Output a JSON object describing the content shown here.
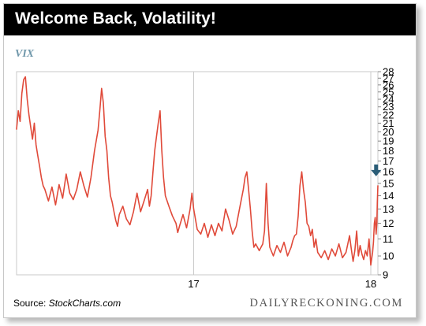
{
  "title": "Welcome Back, Volatility!",
  "series_label": "VIX",
  "source_prefix": "Source: ",
  "source_name": "StockCharts.com",
  "brand": "DAILYRECKONING.COM",
  "colors": {
    "line": "#e04a3a",
    "arrow": "#2b5d77",
    "series_label": "#6f97aa",
    "grid": "#c9c9c9",
    "title_bar": "#000000"
  },
  "chart_data": {
    "type": "line",
    "title": "Welcome Back, Volatility!",
    "ylabel": "VIX",
    "y_scale": "log",
    "ylim": [
      9,
      28
    ],
    "y_ticks": [
      9,
      10,
      11,
      12,
      13,
      14,
      15,
      16,
      17,
      18,
      19,
      20,
      21,
      22,
      23,
      24,
      25,
      26,
      27,
      28
    ],
    "x_range": [
      2016.0,
      2018.04
    ],
    "x_ticks": [
      {
        "value": 2017.0,
        "label": "17"
      },
      {
        "value": 2018.0,
        "label": "18"
      }
    ],
    "grid": "vertical",
    "annotation": {
      "type": "arrow-down",
      "x": 2018.03,
      "points_to": 15.2
    },
    "series": [
      {
        "values": [
          [
            2016.0,
            20.3
          ],
          [
            2016.01,
            22.5
          ],
          [
            2016.02,
            21.2
          ],
          [
            2016.03,
            24.8
          ],
          [
            2016.04,
            26.8
          ],
          [
            2016.05,
            27.2
          ],
          [
            2016.06,
            24.0
          ],
          [
            2016.07,
            22.0
          ],
          [
            2016.08,
            20.5
          ],
          [
            2016.09,
            19.2
          ],
          [
            2016.1,
            21.0
          ],
          [
            2016.11,
            18.6
          ],
          [
            2016.12,
            17.5
          ],
          [
            2016.13,
            16.5
          ],
          [
            2016.14,
            15.5
          ],
          [
            2016.15,
            14.8
          ],
          [
            2016.16,
            14.5
          ],
          [
            2016.18,
            13.6
          ],
          [
            2016.2,
            14.7
          ],
          [
            2016.22,
            13.3
          ],
          [
            2016.24,
            14.9
          ],
          [
            2016.26,
            13.8
          ],
          [
            2016.28,
            15.8
          ],
          [
            2016.3,
            14.2
          ],
          [
            2016.32,
            13.7
          ],
          [
            2016.34,
            14.5
          ],
          [
            2016.36,
            16.0
          ],
          [
            2016.38,
            14.8
          ],
          [
            2016.4,
            13.9
          ],
          [
            2016.42,
            15.5
          ],
          [
            2016.44,
            18.0
          ],
          [
            2016.46,
            20.2
          ],
          [
            2016.47,
            22.5
          ],
          [
            2016.48,
            25.5
          ],
          [
            2016.49,
            23.5
          ],
          [
            2016.5,
            19.5
          ],
          [
            2016.51,
            18.0
          ],
          [
            2016.52,
            15.5
          ],
          [
            2016.53,
            14.0
          ],
          [
            2016.54,
            13.5
          ],
          [
            2016.55,
            12.8
          ],
          [
            2016.56,
            12.2
          ],
          [
            2016.57,
            11.8
          ],
          [
            2016.58,
            12.6
          ],
          [
            2016.6,
            13.2
          ],
          [
            2016.62,
            12.3
          ],
          [
            2016.64,
            11.9
          ],
          [
            2016.66,
            12.8
          ],
          [
            2016.68,
            14.2
          ],
          [
            2016.7,
            12.8
          ],
          [
            2016.72,
            13.6
          ],
          [
            2016.74,
            14.5
          ],
          [
            2016.75,
            13.2
          ],
          [
            2016.76,
            14.0
          ],
          [
            2016.77,
            16.0
          ],
          [
            2016.78,
            18.0
          ],
          [
            2016.79,
            19.5
          ],
          [
            2016.8,
            21.0
          ],
          [
            2016.81,
            22.5
          ],
          [
            2016.82,
            18.0
          ],
          [
            2016.83,
            15.5
          ],
          [
            2016.84,
            14.0
          ],
          [
            2016.86,
            13.2
          ],
          [
            2016.88,
            12.5
          ],
          [
            2016.9,
            12.0
          ],
          [
            2016.91,
            11.4
          ],
          [
            2016.92,
            11.8
          ],
          [
            2016.94,
            12.6
          ],
          [
            2016.96,
            11.7
          ],
          [
            2016.98,
            13.0
          ],
          [
            2016.99,
            14.2
          ],
          [
            2017.0,
            13.0
          ],
          [
            2017.02,
            11.6
          ],
          [
            2017.04,
            11.3
          ],
          [
            2017.06,
            12.0
          ],
          [
            2017.08,
            11.1
          ],
          [
            2017.1,
            11.9
          ],
          [
            2017.12,
            11.2
          ],
          [
            2017.14,
            12.0
          ],
          [
            2017.16,
            11.5
          ],
          [
            2017.18,
            13.0
          ],
          [
            2017.2,
            12.2
          ],
          [
            2017.22,
            11.3
          ],
          [
            2017.24,
            11.8
          ],
          [
            2017.26,
            13.1
          ],
          [
            2017.28,
            14.5
          ],
          [
            2017.29,
            15.5
          ],
          [
            2017.3,
            16.0
          ],
          [
            2017.31,
            14.5
          ],
          [
            2017.32,
            13.0
          ],
          [
            2017.33,
            11.5
          ],
          [
            2017.34,
            10.5
          ],
          [
            2017.35,
            10.7
          ],
          [
            2017.37,
            10.3
          ],
          [
            2017.39,
            10.7
          ],
          [
            2017.4,
            11.5
          ],
          [
            2017.41,
            15.0
          ],
          [
            2017.42,
            12.0
          ],
          [
            2017.43,
            10.5
          ],
          [
            2017.45,
            10.0
          ],
          [
            2017.47,
            10.6
          ],
          [
            2017.49,
            10.2
          ],
          [
            2017.51,
            10.8
          ],
          [
            2017.53,
            10.0
          ],
          [
            2017.55,
            10.5
          ],
          [
            2017.56,
            10.9
          ],
          [
            2017.57,
            11.2
          ],
          [
            2017.58,
            11.3
          ],
          [
            2017.59,
            12.5
          ],
          [
            2017.6,
            14.8
          ],
          [
            2017.61,
            16.0
          ],
          [
            2017.62,
            14.5
          ],
          [
            2017.63,
            13.5
          ],
          [
            2017.64,
            12.0
          ],
          [
            2017.65,
            11.8
          ],
          [
            2017.66,
            11.2
          ],
          [
            2017.67,
            11.6
          ],
          [
            2017.68,
            10.5
          ],
          [
            2017.69,
            11.0
          ],
          [
            2017.7,
            10.2
          ],
          [
            2017.72,
            9.9
          ],
          [
            2017.74,
            10.3
          ],
          [
            2017.76,
            9.8
          ],
          [
            2017.78,
            10.4
          ],
          [
            2017.8,
            10.0
          ],
          [
            2017.82,
            10.7
          ],
          [
            2017.84,
            9.9
          ],
          [
            2017.86,
            10.2
          ],
          [
            2017.88,
            11.2
          ],
          [
            2017.89,
            10.4
          ],
          [
            2017.9,
            9.7
          ],
          [
            2017.91,
            10.3
          ],
          [
            2017.92,
            11.5
          ],
          [
            2017.93,
            10.0
          ],
          [
            2017.94,
            10.6
          ],
          [
            2017.95,
            10.1
          ],
          [
            2017.96,
            9.8
          ],
          [
            2017.97,
            10.3
          ],
          [
            2017.98,
            10.0
          ],
          [
            2017.99,
            11.0
          ],
          [
            2018.0,
            9.5
          ],
          [
            2018.01,
            10.2
          ],
          [
            2018.015,
            10.8
          ],
          [
            2018.02,
            12.0
          ],
          [
            2018.025,
            12.4
          ],
          [
            2018.03,
            11.3
          ],
          [
            2018.034,
            12.0
          ],
          [
            2018.037,
            13.5
          ],
          [
            2018.04,
            14.8
          ]
        ]
      }
    ]
  }
}
